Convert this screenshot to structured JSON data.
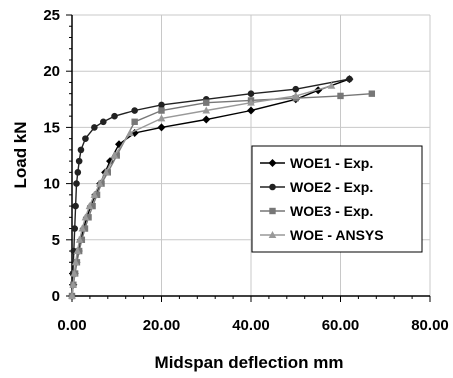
{
  "chart_data": {
    "type": "line",
    "title": "",
    "xlabel": "Midspan deflection mm",
    "ylabel": "Load kN",
    "xlim": [
      0,
      80
    ],
    "ylim": [
      0,
      25
    ],
    "x_ticks": [
      "0.00",
      "20.00",
      "40.00",
      "60.00",
      "80.00"
    ],
    "y_ticks": [
      "0",
      "5",
      "10",
      "15",
      "20",
      "25"
    ],
    "grid": true,
    "legend_position": "right",
    "series": [
      {
        "name": "WOE1 - Exp.",
        "color": "#000000",
        "marker": "diamond",
        "x": [
          0,
          0.3,
          0.6,
          1.0,
          1.5,
          2.0,
          2.6,
          3.3,
          4.2,
          5.2,
          6.3,
          7.4,
          8.5,
          10.5,
          14,
          20,
          30,
          40,
          50,
          55,
          62
        ],
        "y": [
          0,
          1,
          2,
          3,
          4,
          5,
          6,
          7,
          8,
          9,
          10,
          11,
          12,
          13.5,
          14.5,
          15,
          15.7,
          16.5,
          17.5,
          18.3,
          19.3
        ]
      },
      {
        "name": "WOE2 - Exp.",
        "color": "#222222",
        "marker": "circle",
        "x": [
          0,
          0.2,
          0.4,
          0.6,
          0.8,
          1.0,
          1.3,
          1.6,
          2.0,
          3.0,
          5.0,
          7.0,
          9.5,
          14,
          20,
          30,
          40,
          50,
          62
        ],
        "y": [
          0,
          2,
          4,
          6,
          8,
          10,
          11,
          12,
          13,
          14,
          15,
          15.5,
          16,
          16.5,
          17,
          17.5,
          18,
          18.4,
          19.3
        ]
      },
      {
        "name": "WOE3 - Exp.",
        "color": "#777777",
        "marker": "square",
        "x": [
          0,
          0.3,
          0.7,
          1.1,
          1.6,
          2.2,
          2.9,
          3.7,
          4.6,
          5.6,
          6.6,
          8,
          10,
          14,
          20,
          30,
          40,
          50,
          60,
          67
        ],
        "y": [
          0,
          1,
          2,
          3,
          4,
          5,
          6,
          7,
          8,
          9,
          10,
          11,
          12.5,
          15.5,
          16.5,
          17.2,
          17.4,
          17.6,
          17.8,
          18
        ]
      },
      {
        "name": "WOE - ANSYS",
        "color": "#999999",
        "marker": "triangle",
        "x": [
          0,
          0.25,
          0.5,
          0.8,
          1.2,
          1.7,
          2.3,
          3.0,
          3.9,
          5.0,
          6.2,
          7.6,
          9.5,
          13,
          20,
          30,
          40,
          50,
          58
        ],
        "y": [
          0,
          1,
          2,
          3,
          4,
          5,
          6,
          7,
          8,
          9,
          10,
          11,
          12.5,
          14.5,
          15.8,
          16.5,
          17.2,
          17.8,
          18.7
        ]
      }
    ]
  }
}
